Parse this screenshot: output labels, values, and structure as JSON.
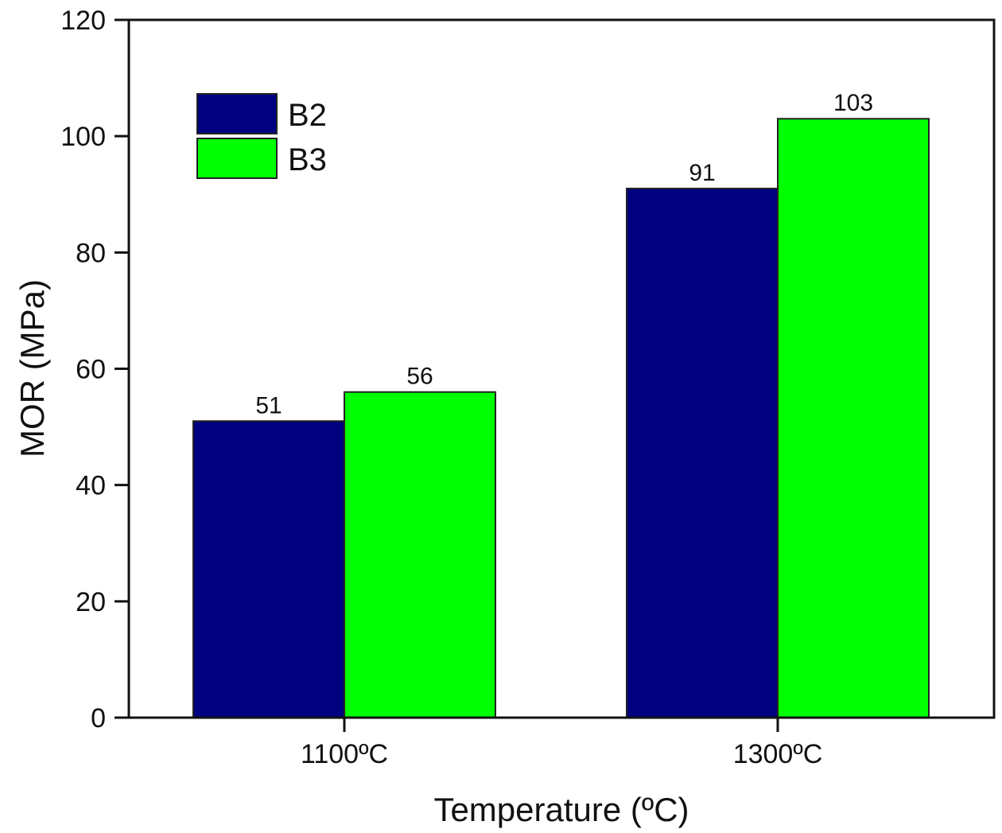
{
  "chart_data": {
    "type": "bar",
    "title": "",
    "xlabel": "Temperature (ºC)",
    "ylabel": "MOR (MPa)",
    "categories": [
      "1100ºC",
      "1300ºC"
    ],
    "series": [
      {
        "name": "B2",
        "color": "#000080",
        "values": [
          51,
          91
        ]
      },
      {
        "name": "B3",
        "color": "#00ff00",
        "values": [
          56,
          103
        ]
      }
    ],
    "ylim": [
      0,
      120
    ],
    "yticks": [
      0,
      20,
      40,
      60,
      80,
      100,
      120
    ],
    "grid": false,
    "legend_position": "top-left",
    "data_labels": true
  }
}
